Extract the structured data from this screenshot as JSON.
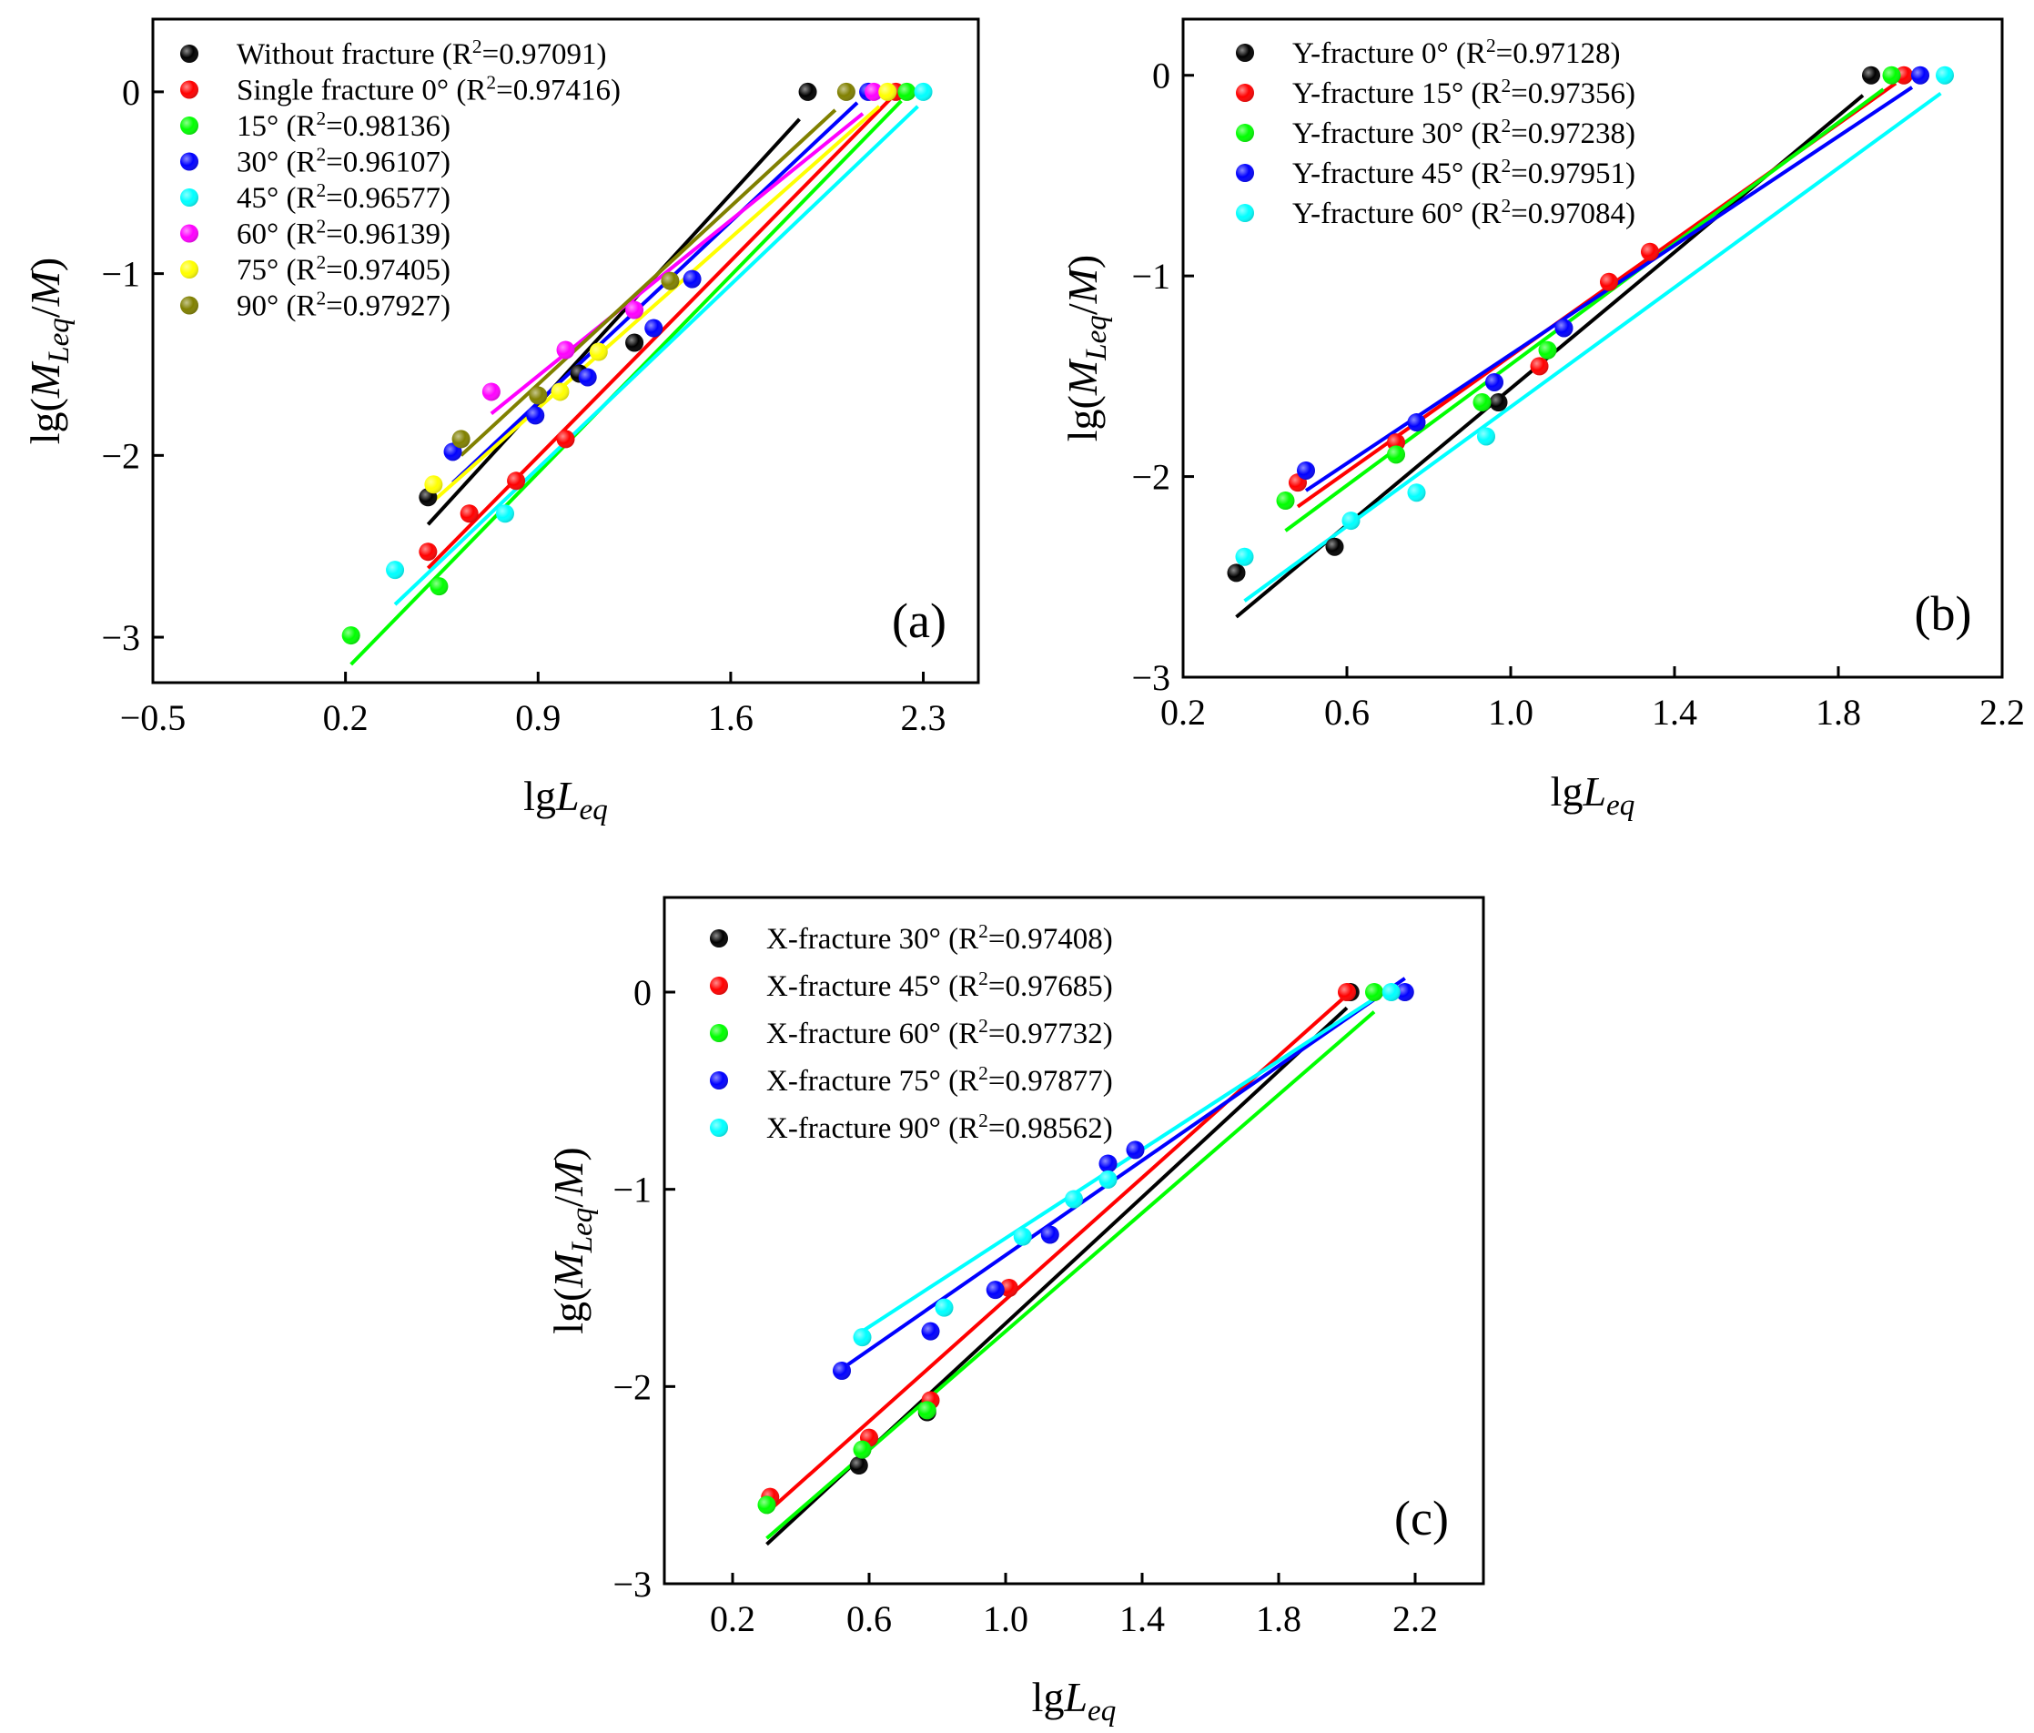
{
  "chart_data": [
    {
      "type": "scatter",
      "panel_label": "(a)",
      "xlabel": "lgL_eq",
      "ylabel": "lg(M_Leq/M)",
      "xlim": [
        -0.5,
        2.5
      ],
      "ylim": [
        -3.25,
        0.4
      ],
      "xticks": [
        -0.5,
        0.2,
        0.9,
        1.6,
        2.3
      ],
      "xtick_labels": [
        "−0.5",
        "0.2",
        "0.9",
        "1.6",
        "2.3"
      ],
      "yticks": [
        -3,
        -2,
        -1,
        0
      ],
      "ytick_labels": [
        "−3",
        "−2",
        "−1",
        "0"
      ],
      "legend_position": "top-left",
      "series": [
        {
          "name": "Without fracture",
          "r2": "0.97091",
          "color": "#000000",
          "x": [
            0.5,
            1.05,
            1.25,
            1.88
          ],
          "y": [
            -2.23,
            -1.55,
            -1.38,
            0.0
          ],
          "fit": [
            [
              0.5,
              -2.38
            ],
            [
              1.85,
              -0.15
            ]
          ]
        },
        {
          "name": "Single fracture 0°",
          "r2": "0.97416",
          "color": "#ff0000",
          "x": [
            0.5,
            0.65,
            0.82,
            1.0,
            2.2
          ],
          "y": [
            -2.53,
            -2.32,
            -2.14,
            -1.91,
            0.0
          ],
          "fit": [
            [
              0.5,
              -2.62
            ],
            [
              2.18,
              -0.04
            ]
          ]
        },
        {
          "name": "15°",
          "r2": "0.98136",
          "color": "#00ff00",
          "x": [
            0.22,
            0.54,
            2.24
          ],
          "y": [
            -2.99,
            -2.72,
            0.0
          ],
          "fit": [
            [
              0.22,
              -3.15
            ],
            [
              2.22,
              -0.05
            ]
          ]
        },
        {
          "name": "30°",
          "r2": "0.96107",
          "color": "#0000ff",
          "x": [
            0.59,
            0.89,
            1.08,
            1.32,
            1.46,
            2.1
          ],
          "y": [
            -1.98,
            -1.78,
            -1.57,
            -1.3,
            -1.03,
            0.0
          ],
          "fit": [
            [
              0.59,
              -2.15
            ],
            [
              2.06,
              -0.06
            ]
          ]
        },
        {
          "name": "45°",
          "r2": "0.96577",
          "color": "#00ffff",
          "x": [
            0.38,
            0.78,
            2.3
          ],
          "y": [
            -2.63,
            -2.32,
            0.0
          ],
          "fit": [
            [
              0.38,
              -2.82
            ],
            [
              2.28,
              -0.08
            ]
          ]
        },
        {
          "name": "60°",
          "r2": "0.96139",
          "color": "#ff00ff",
          "x": [
            0.73,
            1.0,
            1.25,
            2.12
          ],
          "y": [
            -1.65,
            -1.42,
            -1.2,
            0.0
          ],
          "fit": [
            [
              0.73,
              -1.77
            ],
            [
              2.08,
              -0.12
            ]
          ]
        },
        {
          "name": "75°",
          "r2": "0.97405",
          "color": "#ffff00",
          "x": [
            0.52,
            0.98,
            1.12,
            2.17
          ],
          "y": [
            -2.16,
            -1.65,
            -1.43,
            0.0
          ],
          "fit": [
            [
              0.52,
              -2.25
            ],
            [
              2.14,
              -0.08
            ]
          ]
        },
        {
          "name": "90°",
          "r2": "0.97927",
          "color": "#808000",
          "x": [
            0.62,
            0.9,
            1.38,
            2.02
          ],
          "y": [
            -1.91,
            -1.67,
            -1.04,
            0.0
          ],
          "fit": [
            [
              0.62,
              -2.0
            ],
            [
              1.98,
              -0.1
            ]
          ]
        }
      ]
    },
    {
      "type": "scatter",
      "panel_label": "(b)",
      "xlabel": "lgL_eq",
      "ylabel": "lg(M_Leq/M)",
      "xlim": [
        0.2,
        2.2
      ],
      "ylim": [
        -3.0,
        0.28
      ],
      "xticks": [
        0.2,
        0.6,
        1.0,
        1.4,
        1.8,
        2.2
      ],
      "xtick_labels": [
        "0.2",
        "0.6",
        "1.0",
        "1.4",
        "1.8",
        "2.2"
      ],
      "yticks": [
        -3,
        -2,
        -1,
        0
      ],
      "ytick_labels": [
        "−3",
        "−2",
        "−1",
        "0"
      ],
      "legend_position": "top-left",
      "series": [
        {
          "name": "Y-fracture 0°",
          "r2": "0.97128",
          "color": "#000000",
          "x": [
            0.33,
            0.57,
            0.97,
            1.88
          ],
          "y": [
            -2.48,
            -2.35,
            -1.63,
            0.0
          ],
          "fit": [
            [
              0.33,
              -2.7
            ],
            [
              1.86,
              -0.1
            ]
          ]
        },
        {
          "name": "Y-fracture 15°",
          "r2": "0.97356",
          "color": "#ff0000",
          "x": [
            0.48,
            0.72,
            1.07,
            1.24,
            1.34,
            1.96
          ],
          "y": [
            -2.03,
            -1.83,
            -1.45,
            -1.03,
            -0.88,
            0.0
          ],
          "fit": [
            [
              0.48,
              -2.15
            ],
            [
              1.94,
              -0.04
            ]
          ]
        },
        {
          "name": "Y-fracture 30°",
          "r2": "0.97238",
          "color": "#00ff00",
          "x": [
            0.45,
            0.72,
            0.93,
            1.09,
            1.93
          ],
          "y": [
            -2.12,
            -1.89,
            -1.63,
            -1.37,
            0.0
          ],
          "fit": [
            [
              0.45,
              -2.27
            ],
            [
              1.91,
              -0.07
            ]
          ]
        },
        {
          "name": "Y-fracture 45°",
          "r2": "0.97951",
          "color": "#0000ff",
          "x": [
            0.5,
            0.77,
            0.96,
            1.13,
            2.0
          ],
          "y": [
            -1.97,
            -1.73,
            -1.53,
            -1.26,
            0.0
          ],
          "fit": [
            [
              0.5,
              -2.07
            ],
            [
              1.98,
              -0.06
            ]
          ]
        },
        {
          "name": "Y-fracture 60°",
          "r2": "0.97084",
          "color": "#00ffff",
          "x": [
            0.35,
            0.61,
            0.77,
            0.94,
            2.06
          ],
          "y": [
            -2.4,
            -2.22,
            -2.08,
            -1.8,
            0.0
          ],
          "fit": [
            [
              0.35,
              -2.62
            ],
            [
              2.05,
              -0.09
            ]
          ]
        }
      ]
    },
    {
      "type": "scatter",
      "panel_label": "(c)",
      "xlabel": "lgL_eq",
      "ylabel": "lg(M_Leq/M)",
      "xlim": [
        0.0,
        2.4
      ],
      "ylim": [
        -3.0,
        0.48
      ],
      "xticks": [
        0.2,
        0.6,
        1.0,
        1.4,
        1.8,
        2.2
      ],
      "xtick_labels": [
        "0.2",
        "0.6",
        "1.0",
        "1.4",
        "1.8",
        "2.2"
      ],
      "yticks": [
        -3,
        -2,
        -1,
        0
      ],
      "ytick_labels": [
        "−3",
        "−2",
        "−1",
        "0"
      ],
      "legend_position": "top-left",
      "series": [
        {
          "name": "X-fracture 30°",
          "r2": "0.97408",
          "color": "#000000",
          "x": [
            0.57,
            0.77,
            2.01
          ],
          "y": [
            -2.4,
            -2.13,
            0.0
          ],
          "fit": [
            [
              0.3,
              -2.8
            ],
            [
              2.0,
              -0.08
            ]
          ]
        },
        {
          "name": "X-fracture 45°",
          "r2": "0.97685",
          "color": "#ff0000",
          "x": [
            0.31,
            0.6,
            0.78,
            1.01,
            2.0
          ],
          "y": [
            -2.56,
            -2.26,
            -2.07,
            -1.5,
            0.0
          ],
          "fit": [
            [
              0.3,
              -2.64
            ],
            [
              1.99,
              -0.03
            ]
          ]
        },
        {
          "name": "X-fracture 60°",
          "r2": "0.97732",
          "color": "#00ff00",
          "x": [
            0.3,
            0.58,
            0.77,
            2.08
          ],
          "y": [
            -2.6,
            -2.32,
            -2.12,
            0.0
          ],
          "fit": [
            [
              0.3,
              -2.77
            ],
            [
              2.08,
              -0.1
            ]
          ]
        },
        {
          "name": "X-fracture 75°",
          "r2": "0.97877",
          "color": "#0000ff",
          "x": [
            0.52,
            0.78,
            0.97,
            1.13,
            1.3,
            1.38,
            2.17
          ],
          "y": [
            -1.92,
            -1.72,
            -1.51,
            -1.23,
            -0.87,
            -0.8,
            0.0
          ],
          "fit": [
            [
              0.52,
              -1.91
            ],
            [
              2.17,
              0.07
            ]
          ]
        },
        {
          "name": "X-fracture 90°",
          "r2": "0.98562",
          "color": "#00ffff",
          "x": [
            0.58,
            0.82,
            1.05,
            1.2,
            1.3,
            2.13
          ],
          "y": [
            -1.75,
            -1.6,
            -1.24,
            -1.05,
            -0.95,
            0.0
          ],
          "fit": [
            [
              0.58,
              -1.72
            ],
            [
              2.11,
              0.0
            ]
          ]
        }
      ]
    }
  ]
}
